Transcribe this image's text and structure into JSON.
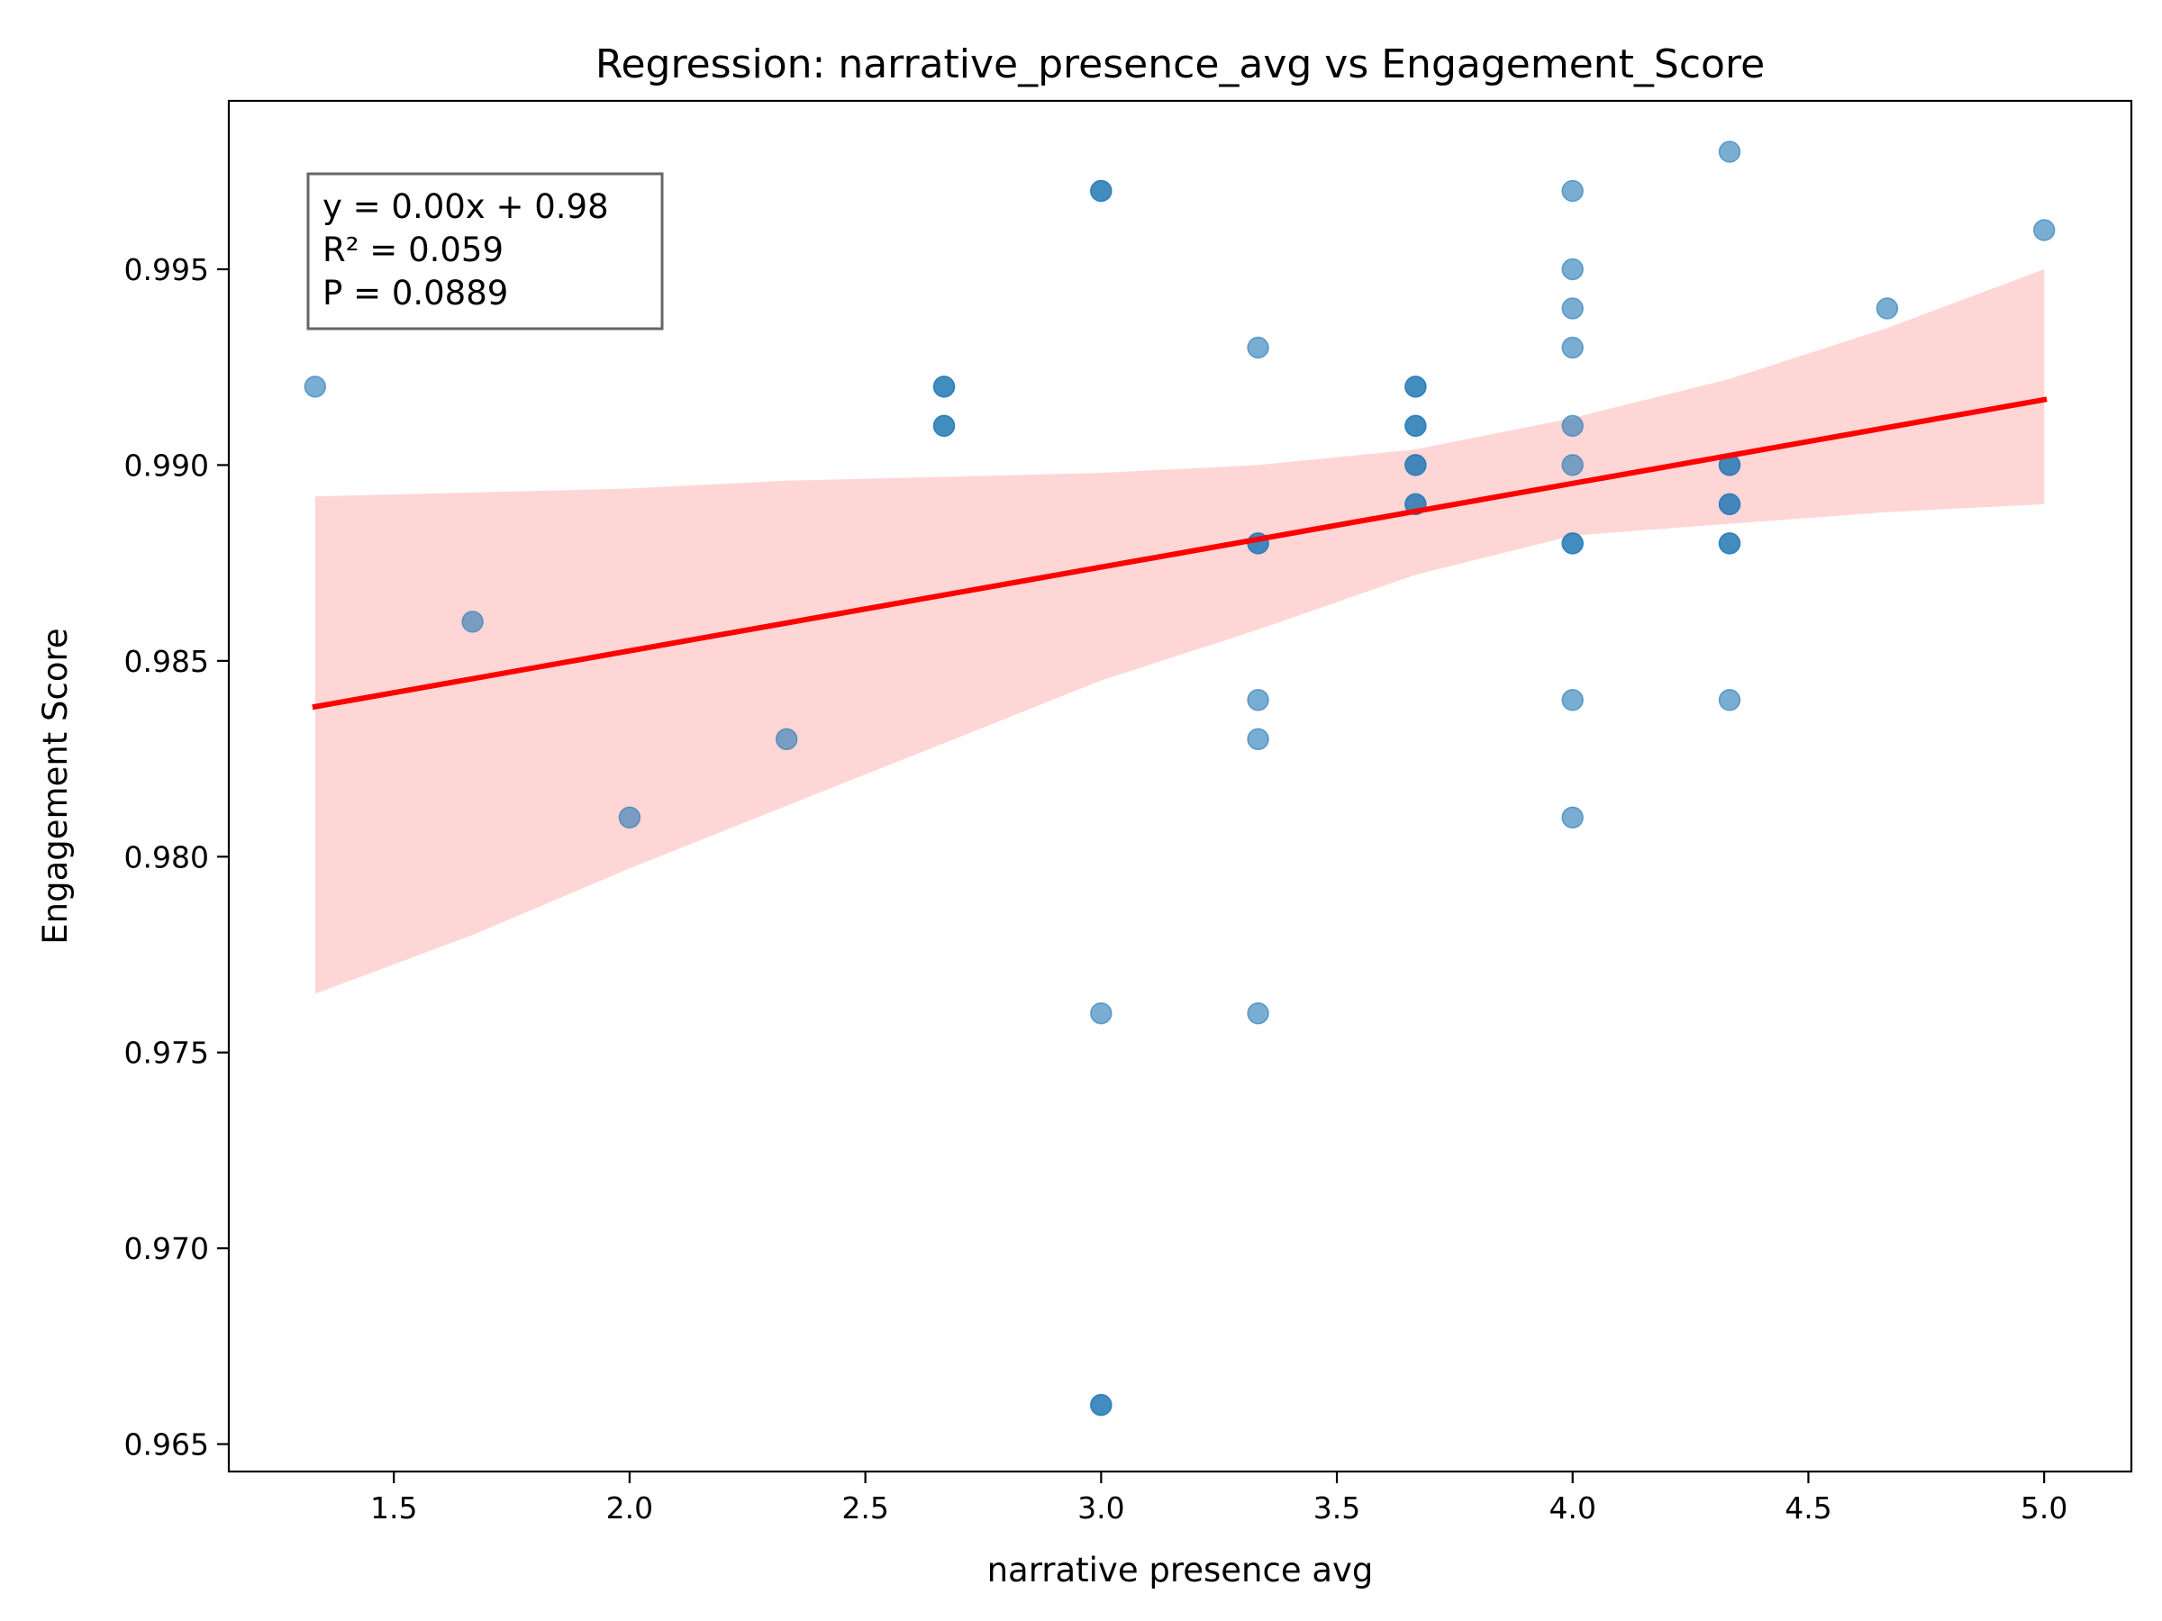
{
  "chart_data": {
    "type": "scatter",
    "title": "Regression: narrative_presence_avg vs Engagement_Score",
    "xlabel": "narrative presence avg",
    "ylabel": "Engagement Score",
    "xlim": [
      1.15,
      5.185
    ],
    "ylim": [
      0.9643,
      0.9993
    ],
    "x_ticks": [
      1.5,
      2.0,
      2.5,
      3.0,
      3.5,
      4.0,
      4.5,
      5.0
    ],
    "x_tick_labels": [
      "1.5",
      "2.0",
      "2.5",
      "3.0",
      "3.5",
      "4.0",
      "4.5",
      "5.0"
    ],
    "y_ticks": [
      0.965,
      0.97,
      0.975,
      0.98,
      0.985,
      0.99,
      0.995
    ],
    "y_tick_labels": [
      "0.965",
      "0.970",
      "0.975",
      "0.980",
      "0.985",
      "0.990",
      "0.995"
    ],
    "grid": false,
    "stats_box": {
      "position": "top-left",
      "lines": [
        "y = 0.00x + 0.98",
        "R² = 0.059",
        "P = 0.0889"
      ]
    },
    "points": [
      [
        1.333,
        0.992
      ],
      [
        1.667,
        0.986
      ],
      [
        2.0,
        0.981
      ],
      [
        2.333,
        0.983
      ],
      [
        2.667,
        0.992
      ],
      [
        2.667,
        0.992
      ],
      [
        2.667,
        0.991
      ],
      [
        2.667,
        0.991
      ],
      [
        3.0,
        0.997
      ],
      [
        3.0,
        0.997
      ],
      [
        3.0,
        0.976
      ],
      [
        3.0,
        0.966
      ],
      [
        3.0,
        0.966
      ],
      [
        3.333,
        0.993
      ],
      [
        3.333,
        0.988
      ],
      [
        3.333,
        0.988
      ],
      [
        3.333,
        0.984
      ],
      [
        3.333,
        0.983
      ],
      [
        3.333,
        0.976
      ],
      [
        3.667,
        0.992
      ],
      [
        3.667,
        0.992
      ],
      [
        3.667,
        0.991
      ],
      [
        3.667,
        0.991
      ],
      [
        3.667,
        0.99
      ],
      [
        3.667,
        0.99
      ],
      [
        3.667,
        0.989
      ],
      [
        3.667,
        0.989
      ],
      [
        4.0,
        0.997
      ],
      [
        4.0,
        0.995
      ],
      [
        4.0,
        0.994
      ],
      [
        4.0,
        0.993
      ],
      [
        4.0,
        0.991
      ],
      [
        4.0,
        0.99
      ],
      [
        4.0,
        0.988
      ],
      [
        4.0,
        0.988
      ],
      [
        4.0,
        0.984
      ],
      [
        4.0,
        0.981
      ],
      [
        4.333,
        0.998
      ],
      [
        4.333,
        0.99
      ],
      [
        4.333,
        0.99
      ],
      [
        4.333,
        0.989
      ],
      [
        4.333,
        0.989
      ],
      [
        4.333,
        0.988
      ],
      [
        4.333,
        0.988
      ],
      [
        4.333,
        0.984
      ],
      [
        4.667,
        0.994
      ],
      [
        5.0,
        0.996
      ]
    ],
    "regression_line": {
      "x": [
        1.333,
        5.0
      ],
      "y": [
        0.98383,
        0.99167
      ]
    },
    "confidence_band": {
      "x": [
        1.333,
        1.667,
        2.0,
        2.333,
        2.667,
        3.0,
        3.333,
        3.667,
        4.0,
        4.333,
        4.667,
        5.0
      ],
      "lower": [
        0.9765,
        0.978,
        0.9797,
        0.9813,
        0.9829,
        0.9845,
        0.9858,
        0.9872,
        0.9882,
        0.9885,
        0.9888,
        0.989
      ],
      "upper": [
        0.9892,
        0.9893,
        0.9894,
        0.9896,
        0.9897,
        0.9898,
        0.99,
        0.9904,
        0.9912,
        0.9922,
        0.9935,
        0.995
      ]
    },
    "colors": {
      "points": "#1f77b4",
      "regression_line": "#ff0000",
      "confidence_band": "#ffcccc",
      "axes": "#000000",
      "stats_box_border": "#666666"
    }
  }
}
